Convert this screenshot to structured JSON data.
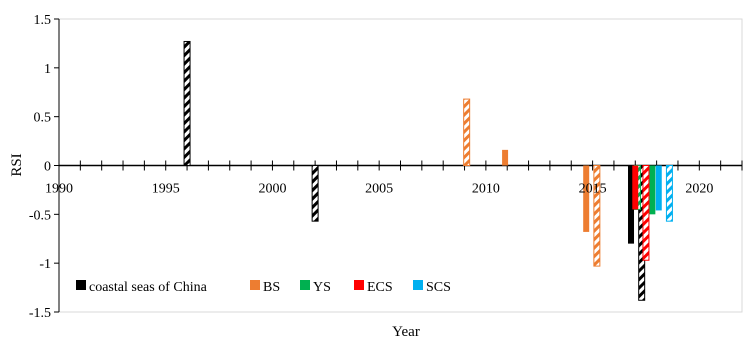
{
  "chart_data": {
    "type": "bar",
    "title": "",
    "xlabel": "Year",
    "ylabel": "RSI",
    "xlim": [
      1990,
      2022
    ],
    "ylim": [
      -1.5,
      1.5
    ],
    "x_ticks": [
      1990,
      1995,
      2000,
      2005,
      2010,
      2015,
      2020
    ],
    "y_ticks": [
      -1.5,
      -1,
      -0.5,
      0,
      0.5,
      1,
      1.5
    ],
    "y_tick_labels": [
      "-1.5",
      "-1",
      "-0.5",
      "0",
      "0.5",
      "1",
      "1.5"
    ],
    "grid": false,
    "legend_position": "bottom-left",
    "pattern_note_hatched": "hatched bars and solid bars share the legend colors",
    "series": [
      {
        "name": "coastal seas of China",
        "color": "#000000",
        "points": [
          {
            "x": 1996.0,
            "y": 1.27,
            "hatched": true
          },
          {
            "x": 2002.0,
            "y": -0.57,
            "hatched": true
          },
          {
            "x": 2016.8,
            "y": -0.8,
            "hatched": false
          },
          {
            "x": 2017.3,
            "y": -1.38,
            "hatched": true
          }
        ]
      },
      {
        "name": "BS",
        "color": "#ED7D31",
        "points": [
          {
            "x": 2009.1,
            "y": 0.68,
            "hatched": true
          },
          {
            "x": 2010.9,
            "y": 0.16,
            "hatched": false
          },
          {
            "x": 2014.7,
            "y": -0.68,
            "hatched": false
          },
          {
            "x": 2015.2,
            "y": -1.03,
            "hatched": true
          }
        ]
      },
      {
        "name": "YS",
        "color": "#00B050",
        "points": [
          {
            "x": 2017.1,
            "y": -0.45,
            "hatched": true
          },
          {
            "x": 2017.8,
            "y": -0.5,
            "hatched": false
          }
        ]
      },
      {
        "name": "ECS",
        "color": "#FF0000",
        "points": [
          {
            "x": 2017.0,
            "y": -0.45,
            "hatched": false
          },
          {
            "x": 2017.5,
            "y": -0.97,
            "hatched": true
          }
        ]
      },
      {
        "name": "SCS",
        "color": "#00B0F0",
        "points": [
          {
            "x": 2018.1,
            "y": -0.46,
            "hatched": false
          },
          {
            "x": 2018.6,
            "y": -0.57,
            "hatched": true
          }
        ]
      }
    ]
  }
}
